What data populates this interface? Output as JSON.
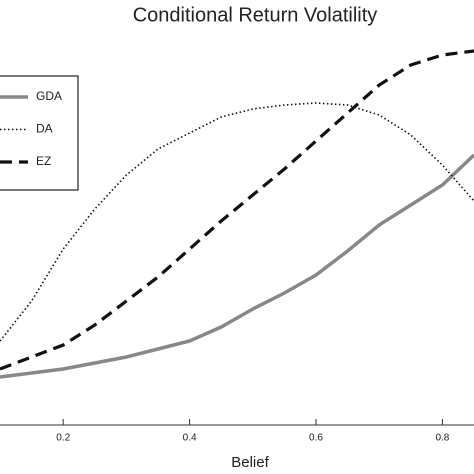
{
  "chart_data": {
    "type": "line",
    "title": "Conditional Return Volatility",
    "x_label": "Belief",
    "x": [
      0.1,
      0.15,
      0.2,
      0.25,
      0.3,
      0.35,
      0.4,
      0.45,
      0.5,
      0.55,
      0.6,
      0.65,
      0.7,
      0.75,
      0.8,
      0.85
    ],
    "xlim": [
      0.1,
      0.85
    ],
    "xticks": [
      0.2,
      0.4,
      0.6,
      0.8
    ],
    "ylim": [
      0,
      1
    ],
    "series": [
      {
        "name": "GDA",
        "color": "#888888",
        "line_style": "solid",
        "values": [
          0.12,
          0.13,
          0.14,
          0.155,
          0.17,
          0.19,
          0.21,
          0.245,
          0.29,
          0.33,
          0.375,
          0.435,
          0.5,
          0.55,
          0.6,
          0.675
        ]
      },
      {
        "name": "DA",
        "color": "#111111",
        "line_style": "dotted",
        "values": [
          0.21,
          0.31,
          0.44,
          0.54,
          0.625,
          0.69,
          0.73,
          0.77,
          0.79,
          0.8,
          0.805,
          0.8,
          0.775,
          0.725,
          0.65,
          0.56
        ]
      },
      {
        "name": "EZ",
        "color": "#111111",
        "line_style": "dashed",
        "values": [
          0.14,
          0.17,
          0.2,
          0.25,
          0.31,
          0.37,
          0.44,
          0.51,
          0.575,
          0.64,
          0.71,
          0.78,
          0.85,
          0.9,
          0.925,
          0.935
        ]
      }
    ]
  }
}
